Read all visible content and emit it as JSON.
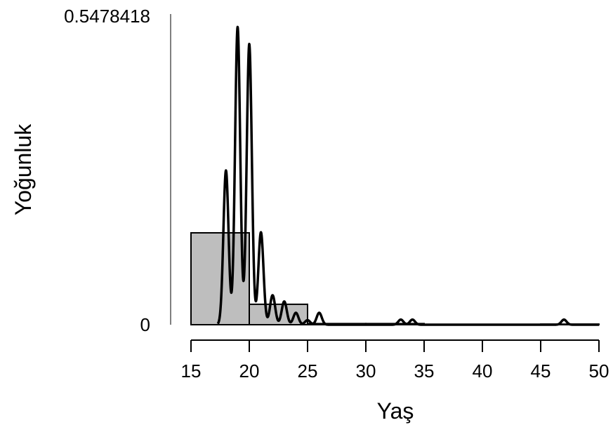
{
  "chart_data": {
    "type": "histogram",
    "xlabel": "Yaş",
    "ylabel": "Yoğunluk",
    "xlim": [
      15,
      50
    ],
    "ylim": [
      0,
      0.5478418
    ],
    "x_ticks": [
      15,
      20,
      25,
      30,
      35,
      40,
      45,
      50
    ],
    "x_tick_labels": [
      "15",
      "20",
      "25",
      "30",
      "35",
      "40",
      "45",
      "50"
    ],
    "y_ticks": [
      0,
      0.5478418
    ],
    "y_tick_labels": [
      "0",
      "0.5478418"
    ],
    "bins": [
      {
        "start": 15,
        "end": 20,
        "density": 0.162
      },
      {
        "start": 20,
        "end": 25,
        "density": 0.036
      },
      {
        "start": 25,
        "end": 30,
        "density": 0.002
      },
      {
        "start": 30,
        "end": 35,
        "density": 0.002
      },
      {
        "start": 35,
        "end": 40,
        "density": 0.0
      },
      {
        "start": 40,
        "end": 45,
        "density": 0.0
      },
      {
        "start": 45,
        "end": 50,
        "density": 0.001
      }
    ],
    "density_curve": {
      "peaks": [
        {
          "x": 18,
          "y": 0.272
        },
        {
          "x": 19,
          "y": 0.525
        },
        {
          "x": 20,
          "y": 0.495
        },
        {
          "x": 21,
          "y": 0.163
        },
        {
          "x": 22,
          "y": 0.052
        },
        {
          "x": 23,
          "y": 0.041
        },
        {
          "x": 24,
          "y": 0.021
        },
        {
          "x": 25,
          "y": 0.008
        },
        {
          "x": 26,
          "y": 0.021
        },
        {
          "x": 33,
          "y": 0.009
        },
        {
          "x": 34,
          "y": 0.009
        },
        {
          "x": 47,
          "y": 0.009
        }
      ],
      "x_start": 17.3,
      "x_end": 50
    },
    "grid": false,
    "legend": "none"
  }
}
